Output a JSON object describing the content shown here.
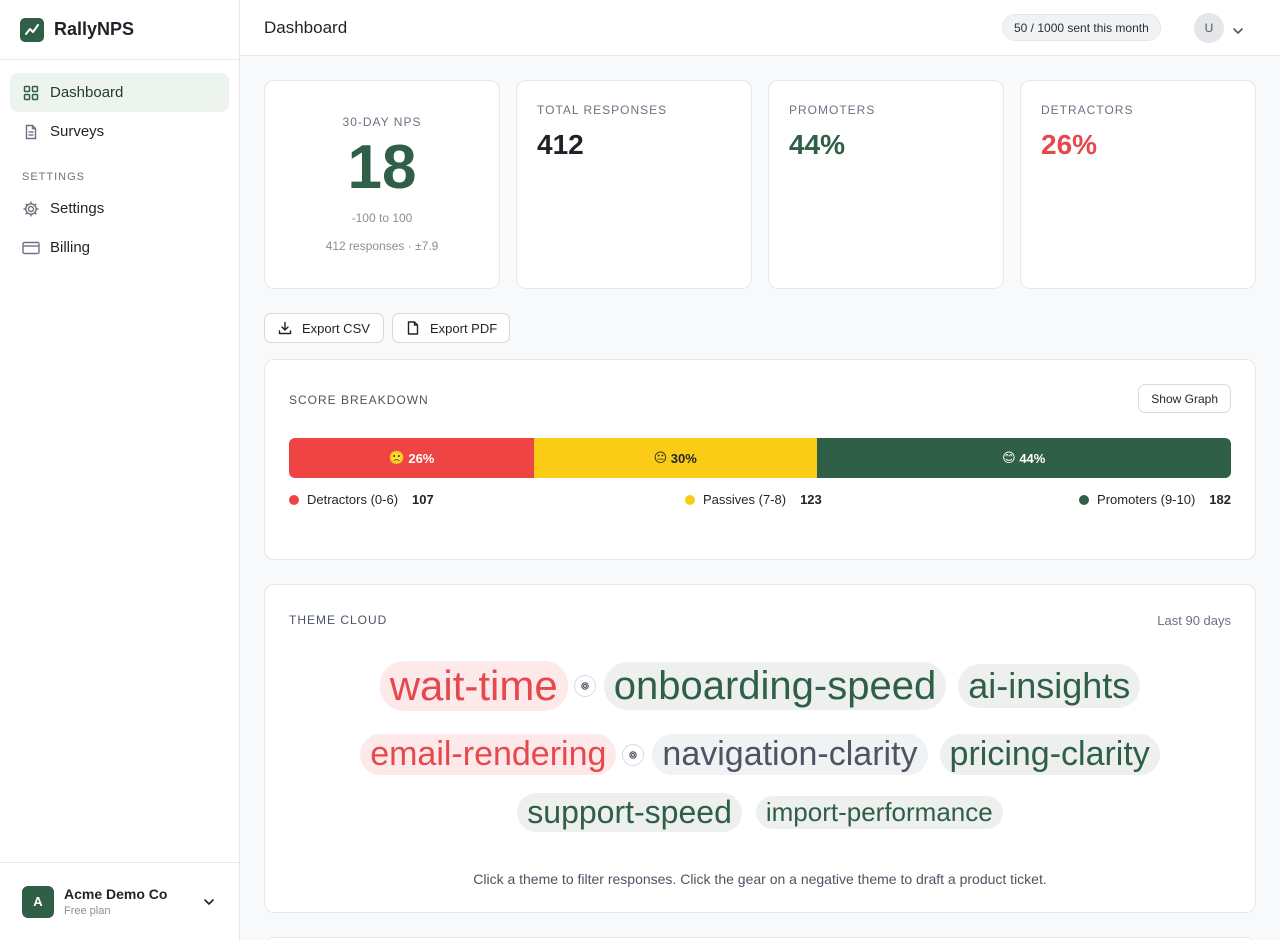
{
  "brand": {
    "name": "RallyNPS"
  },
  "sidebar": {
    "items": [
      {
        "label": "Dashboard"
      },
      {
        "label": "Surveys"
      }
    ],
    "settings_section": "SETTINGS",
    "settings_items": [
      {
        "label": "Settings"
      },
      {
        "label": "Billing"
      }
    ],
    "account": {
      "initial": "A",
      "name": "Acme Demo Co",
      "plan": "Free plan"
    }
  },
  "topbar": {
    "title": "Dashboard",
    "quota": "50 / 1000 sent this month",
    "user_initial": "U"
  },
  "nps": {
    "label": "30-DAY NPS",
    "value": "18",
    "range": "-100 to 100",
    "meta": "412 responses · ±7.9"
  },
  "stats": [
    {
      "label": "TOTAL RESPONSES",
      "value": "412"
    },
    {
      "label": "PROMOTERS",
      "value": "44%"
    },
    {
      "label": "DETRACTORS",
      "value": "26%"
    }
  ],
  "actions": {
    "export_csv": "Export CSV",
    "export_pdf": "Export PDF"
  },
  "breakdown": {
    "title": "SCORE BREAKDOWN",
    "show_graph": "Show Graph",
    "segments": [
      {
        "emoji": "🙁",
        "label": "26%",
        "fraction": 0.26,
        "color": "#ef4444"
      },
      {
        "emoji": "😐",
        "label": "30%",
        "fraction": 0.3,
        "color": "#facc15"
      },
      {
        "emoji": "😊",
        "label": "44%",
        "fraction": 0.44,
        "color": "#2f5f46"
      }
    ],
    "legend": [
      {
        "label": "Detractors (0-6)",
        "count": "107",
        "color": "#ef4444"
      },
      {
        "label": "Passives (7-8)",
        "count": "123",
        "color": "#facc15"
      },
      {
        "label": "Promoters (9-10)",
        "count": "182",
        "color": "#2f5f46"
      }
    ]
  },
  "themes": {
    "title": "THEME CLOUD",
    "range": "Last 90 days",
    "tags": [
      {
        "label": "wait-time",
        "sentiment": "negative"
      },
      {
        "label": "onboarding-speed",
        "sentiment": "positive"
      },
      {
        "label": "ai-insights",
        "sentiment": "positive"
      },
      {
        "label": "email-rendering",
        "sentiment": "negative"
      },
      {
        "label": "navigation-clarity",
        "sentiment": "neutral"
      },
      {
        "label": "pricing-clarity",
        "sentiment": "positive"
      },
      {
        "label": "support-speed",
        "sentiment": "positive"
      },
      {
        "label": "import-performance",
        "sentiment": "positive"
      }
    ],
    "hint": "Click a theme to filter responses. Click the gear on a negative theme to draft a product ticket."
  },
  "colors": {
    "accent": "#2f5f46",
    "negative": "#e5484d",
    "neutral": "#4b5563"
  }
}
